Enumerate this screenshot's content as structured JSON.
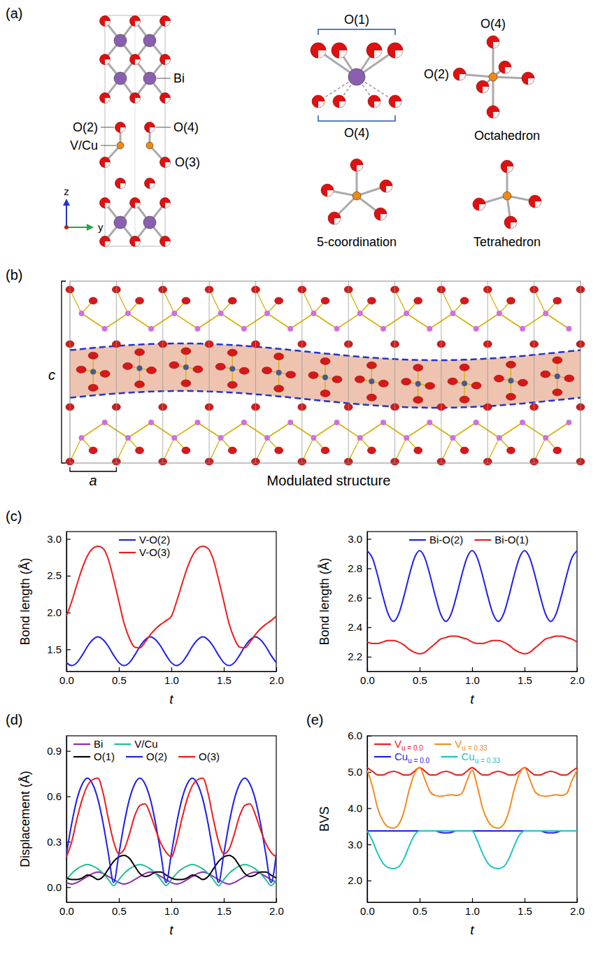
{
  "diagram": {
    "panel_a": {
      "panel": "(a)",
      "labels": {
        "bi": "Bi",
        "o2": "O(2)",
        "o4": "O(4)",
        "vcu": "V/Cu",
        "o3": "O(3)"
      },
      "axes": {
        "z": "z",
        "y": "y"
      },
      "bi_site": {
        "top": "O(1)",
        "bottom": "O(4)"
      },
      "octahedron": {
        "top": "O(4)",
        "side": "O(2)",
        "name": "Octahedron"
      },
      "five": "5-coordination",
      "tetra": "Tetrahedron"
    },
    "panel_b": {
      "panel": "(b)",
      "c": "c",
      "a": "a",
      "caption": "Modulated structure"
    }
  },
  "chart_data": [
    {
      "type": "line",
      "panel": "(c)",
      "xlabel": "t",
      "ylabel": "Bond length (Å)",
      "legend": "top",
      "x": [
        0,
        0.05,
        0.1,
        0.15,
        0.2,
        0.25,
        0.3,
        0.35,
        0.4,
        0.45,
        0.5,
        0.55,
        0.6,
        0.65,
        0.7,
        0.75,
        0.8,
        0.85,
        0.9,
        0.95,
        1,
        1.05,
        1.1,
        1.15,
        1.2,
        1.25,
        1.3,
        1.35,
        1.4,
        1.45,
        1.5,
        1.55,
        1.6,
        1.65,
        1.7,
        1.75,
        1.8,
        1.85,
        1.9,
        1.95,
        2
      ],
      "xlim": [
        0,
        2
      ],
      "xticks": [
        {
          "value": 0,
          "label": "0.0"
        },
        0.5,
        {
          "value": 1,
          "label": "1.0"
        },
        1.5,
        {
          "value": 2,
          "label": "2.0"
        }
      ],
      "ylim": [
        1.2,
        3.1
      ],
      "yticks": [
        1.5,
        {
          "value": 2,
          "label": "2.0"
        },
        2.5,
        {
          "value": 3,
          "label": "3.0"
        }
      ],
      "series": [
        {
          "name": "V-O(2)",
          "color": "#1f1fe8",
          "values": [
            1.32,
            1.28,
            1.32,
            1.42,
            1.54,
            1.63,
            1.67,
            1.63,
            1.54,
            1.42,
            1.32,
            1.28,
            1.32,
            1.42,
            1.54,
            1.63,
            1.67,
            1.63,
            1.54,
            1.42,
            1.32,
            1.28,
            1.32,
            1.42,
            1.54,
            1.63,
            1.67,
            1.63,
            1.54,
            1.42,
            1.32,
            1.28,
            1.32,
            1.42,
            1.54,
            1.63,
            1.67,
            1.63,
            1.54,
            1.42,
            1.32
          ]
        },
        {
          "name": "V-O(3)",
          "color": "#ee1c1c",
          "values": [
            1.95,
            2.15,
            2.38,
            2.6,
            2.77,
            2.87,
            2.9,
            2.87,
            2.72,
            2.45,
            2.15,
            1.85,
            1.65,
            1.53,
            1.52,
            1.6,
            1.7,
            1.78,
            1.84,
            1.89,
            1.95,
            2.15,
            2.38,
            2.6,
            2.77,
            2.87,
            2.9,
            2.87,
            2.72,
            2.45,
            2.15,
            1.85,
            1.65,
            1.53,
            1.52,
            1.6,
            1.7,
            1.78,
            1.84,
            1.89,
            1.95
          ]
        }
      ]
    },
    {
      "type": "line",
      "xlabel": "t",
      "ylabel": "Bond length (Å)",
      "legend": "top",
      "x": [
        0,
        0.05,
        0.1,
        0.15,
        0.2,
        0.25,
        0.3,
        0.35,
        0.4,
        0.45,
        0.5,
        0.55,
        0.6,
        0.65,
        0.7,
        0.75,
        0.8,
        0.85,
        0.9,
        0.95,
        1,
        1.05,
        1.1,
        1.15,
        1.2,
        1.25,
        1.3,
        1.35,
        1.4,
        1.45,
        1.5,
        1.55,
        1.6,
        1.65,
        1.7,
        1.75,
        1.8,
        1.85,
        1.9,
        1.95,
        2
      ],
      "xlim": [
        0,
        2
      ],
      "xticks": [
        {
          "value": 0,
          "label": "0.0"
        },
        0.5,
        {
          "value": 1,
          "label": "1.0"
        },
        1.5,
        {
          "value": 2,
          "label": "2.0"
        }
      ],
      "ylim": [
        2.1,
        3.05
      ],
      "yticks": [
        2.2,
        2.4,
        2.6,
        2.8,
        {
          "value": 3,
          "label": "3.0"
        }
      ],
      "series": [
        {
          "name": "Bi-O(2)",
          "color": "#1f1fe8",
          "values": [
            2.92,
            2.87,
            2.75,
            2.61,
            2.49,
            2.44,
            2.49,
            2.61,
            2.75,
            2.87,
            2.92,
            2.87,
            2.75,
            2.61,
            2.49,
            2.44,
            2.49,
            2.61,
            2.75,
            2.87,
            2.92,
            2.87,
            2.75,
            2.61,
            2.49,
            2.44,
            2.49,
            2.61,
            2.75,
            2.87,
            2.92,
            2.87,
            2.75,
            2.61,
            2.49,
            2.44,
            2.49,
            2.61,
            2.75,
            2.87,
            2.92
          ]
        },
        {
          "name": "Bi-O(1)",
          "color": "#ee1c1c",
          "values": [
            2.3,
            2.29,
            2.29,
            2.3,
            2.31,
            2.31,
            2.3,
            2.28,
            2.25,
            2.23,
            2.22,
            2.23,
            2.26,
            2.29,
            2.32,
            2.33,
            2.34,
            2.34,
            2.33,
            2.32,
            2.3,
            2.29,
            2.29,
            2.3,
            2.31,
            2.31,
            2.3,
            2.28,
            2.25,
            2.23,
            2.22,
            2.23,
            2.26,
            2.29,
            2.32,
            2.33,
            2.34,
            2.34,
            2.33,
            2.32,
            2.3
          ]
        }
      ]
    },
    {
      "type": "line",
      "panel": "(d)",
      "xlabel": "t",
      "ylabel": "Displacement (Å)",
      "legend": "top",
      "x": [
        0,
        0.05,
        0.1,
        0.15,
        0.2,
        0.25,
        0.3,
        0.35,
        0.4,
        0.45,
        0.5,
        0.55,
        0.6,
        0.65,
        0.7,
        0.75,
        0.8,
        0.85,
        0.9,
        0.95,
        1,
        1.05,
        1.1,
        1.15,
        1.2,
        1.25,
        1.3,
        1.35,
        1.4,
        1.45,
        1.5,
        1.55,
        1.6,
        1.65,
        1.7,
        1.75,
        1.8,
        1.85,
        1.9,
        1.95,
        2
      ],
      "xlim": [
        0,
        2
      ],
      "xticks": [
        {
          "value": 0,
          "label": "0.0"
        },
        0.5,
        {
          "value": 1,
          "label": "1.0"
        },
        1.5,
        {
          "value": 2,
          "label": "2.0"
        }
      ],
      "ylim": [
        -0.1,
        1.0
      ],
      "yticks": [
        {
          "value": 0,
          "label": "0.0"
        },
        0.3,
        0.6,
        0.9
      ],
      "series": [
        {
          "name": "Bi",
          "color": "#8e2bb0",
          "values": [
            0.03,
            0.02,
            0.03,
            0.05,
            0.07,
            0.09,
            0.1,
            0.09,
            0.07,
            0.05,
            0.03,
            0.02,
            0.03,
            0.05,
            0.07,
            0.09,
            0.1,
            0.09,
            0.07,
            0.05,
            0.03,
            0.02,
            0.03,
            0.05,
            0.07,
            0.09,
            0.1,
            0.09,
            0.07,
            0.05,
            0.03,
            0.02,
            0.03,
            0.05,
            0.07,
            0.09,
            0.1,
            0.09,
            0.07,
            0.05,
            0.03
          ]
        },
        {
          "name": "V/Cu",
          "color": "#1fbf8f",
          "values": [
            0.05,
            0.09,
            0.12,
            0.14,
            0.15,
            0.14,
            0.12,
            0.09,
            0.05,
            0.01,
            0.05,
            0.09,
            0.12,
            0.14,
            0.15,
            0.14,
            0.12,
            0.09,
            0.05,
            0.01,
            0.05,
            0.09,
            0.12,
            0.14,
            0.15,
            0.14,
            0.12,
            0.09,
            0.05,
            0.01,
            0.05,
            0.09,
            0.12,
            0.14,
            0.15,
            0.14,
            0.12,
            0.09,
            0.05,
            0.01,
            0.05
          ]
        },
        {
          "name": "O(1)",
          "color": "#000000",
          "values": [
            0.06,
            0.05,
            0.05,
            0.06,
            0.08,
            0.07,
            0.05,
            0.07,
            0.12,
            0.17,
            0.2,
            0.21,
            0.19,
            0.14,
            0.09,
            0.07,
            0.08,
            0.1,
            0.1,
            0.08,
            0.06,
            0.05,
            0.05,
            0.06,
            0.08,
            0.07,
            0.05,
            0.07,
            0.12,
            0.17,
            0.2,
            0.21,
            0.19,
            0.14,
            0.09,
            0.07,
            0.08,
            0.1,
            0.1,
            0.08,
            0.06
          ]
        },
        {
          "name": "O(2)",
          "color": "#1f1fe8",
          "values": [
            0.22,
            0.42,
            0.58,
            0.68,
            0.72,
            0.68,
            0.58,
            0.42,
            0.22,
            0.03,
            0.22,
            0.42,
            0.58,
            0.68,
            0.72,
            0.68,
            0.58,
            0.42,
            0.22,
            0.03,
            0.22,
            0.42,
            0.58,
            0.68,
            0.72,
            0.68,
            0.58,
            0.42,
            0.22,
            0.03,
            0.22,
            0.42,
            0.58,
            0.68,
            0.72,
            0.68,
            0.58,
            0.42,
            0.22,
            0.03,
            0.22
          ]
        },
        {
          "name": "O(3)",
          "color": "#ee1c1c",
          "values": [
            0.2,
            0.3,
            0.45,
            0.58,
            0.67,
            0.71,
            0.72,
            0.62,
            0.45,
            0.3,
            0.22,
            0.25,
            0.35,
            0.47,
            0.54,
            0.55,
            0.48,
            0.38,
            0.29,
            0.23,
            0.2,
            0.3,
            0.45,
            0.58,
            0.67,
            0.71,
            0.72,
            0.62,
            0.45,
            0.3,
            0.22,
            0.25,
            0.35,
            0.47,
            0.54,
            0.55,
            0.48,
            0.38,
            0.29,
            0.23,
            0.2
          ]
        }
      ]
    },
    {
      "type": "line",
      "panel": "(e)",
      "xlabel": "t",
      "ylabel": "BVS",
      "legend": "top",
      "x": [
        0,
        0.05,
        0.1,
        0.15,
        0.2,
        0.25,
        0.3,
        0.35,
        0.4,
        0.45,
        0.5,
        0.55,
        0.6,
        0.65,
        0.7,
        0.75,
        0.8,
        0.85,
        0.9,
        0.95,
        1,
        1.05,
        1.1,
        1.15,
        1.2,
        1.25,
        1.3,
        1.35,
        1.4,
        1.45,
        1.5,
        1.55,
        1.6,
        1.65,
        1.7,
        1.75,
        1.8,
        1.85,
        1.9,
        1.95,
        2
      ],
      "xlim": [
        0,
        2
      ],
      "xticks": [
        {
          "value": 0,
          "label": "0.0"
        },
        0.5,
        {
          "value": 1,
          "label": "1.0"
        },
        1.5,
        {
          "value": 2,
          "label": "2.0"
        }
      ],
      "ylim": [
        1.4,
        6.0
      ],
      "yticks": [
        {
          "value": 2,
          "label": "2.0"
        },
        {
          "value": 3,
          "label": "3.0"
        },
        {
          "value": 4,
          "label": "4.0"
        },
        {
          "value": 5,
          "label": "5.0"
        },
        {
          "value": 6,
          "label": "6.0"
        }
      ],
      "series": [
        {
          "name": "V",
          "name_subscript": "u = 0.0",
          "color": "#ee1c1c",
          "values": [
            5.12,
            5.02,
            4.92,
            4.92,
            4.98,
            5.02,
            4.98,
            4.92,
            4.92,
            5.02,
            5.12,
            5.02,
            4.92,
            4.92,
            4.98,
            5.02,
            4.98,
            4.92,
            4.92,
            5.02,
            5.12,
            5.02,
            4.92,
            4.92,
            4.98,
            5.02,
            4.98,
            4.92,
            4.92,
            5.02,
            5.12,
            5.02,
            4.92,
            4.92,
            4.98,
            5.02,
            4.98,
            4.92,
            4.92,
            5.02,
            5.12
          ]
        },
        {
          "name": "V",
          "name_subscript": "u = 0.33",
          "color": "#f58a1f",
          "values": [
            5.05,
            4.6,
            4.0,
            3.65,
            3.48,
            3.45,
            3.55,
            3.9,
            4.5,
            4.95,
            5.12,
            4.8,
            4.45,
            4.35,
            4.33,
            4.35,
            4.37,
            4.35,
            4.4,
            4.75,
            5.05,
            4.6,
            4.0,
            3.65,
            3.48,
            3.45,
            3.55,
            3.9,
            4.5,
            4.95,
            5.12,
            4.8,
            4.45,
            4.35,
            4.33,
            4.35,
            4.37,
            4.35,
            4.4,
            4.75,
            5.05
          ]
        },
        {
          "name": "Cu",
          "name_subscript": "u = 0.0",
          "color": "#1f1fe8",
          "values": [
            3.37,
            3.37,
            3.37,
            3.37,
            3.37,
            3.37,
            3.37,
            3.37,
            3.37,
            3.37,
            3.37,
            3.37,
            3.37,
            3.37,
            3.33,
            3.32,
            3.33,
            3.37,
            3.37,
            3.37,
            3.37,
            3.37,
            3.37,
            3.37,
            3.37,
            3.37,
            3.37,
            3.37,
            3.37,
            3.37,
            3.37,
            3.37,
            3.37,
            3.37,
            3.33,
            3.32,
            3.33,
            3.37,
            3.37,
            3.37,
            3.37
          ]
        },
        {
          "name": "Cu",
          "name_subscript": "u = 0.33",
          "color": "#1ec4c4",
          "values": [
            3.37,
            3.1,
            2.75,
            2.48,
            2.36,
            2.33,
            2.38,
            2.6,
            2.95,
            3.25,
            3.37,
            3.37,
            3.37,
            3.37,
            3.37,
            3.37,
            3.37,
            3.37,
            3.37,
            3.37,
            3.37,
            3.1,
            2.75,
            2.48,
            2.36,
            2.33,
            2.38,
            2.6,
            2.95,
            3.25,
            3.37,
            3.37,
            3.37,
            3.37,
            3.37,
            3.37,
            3.37,
            3.37,
            3.37,
            3.37,
            3.37
          ]
        }
      ]
    }
  ]
}
